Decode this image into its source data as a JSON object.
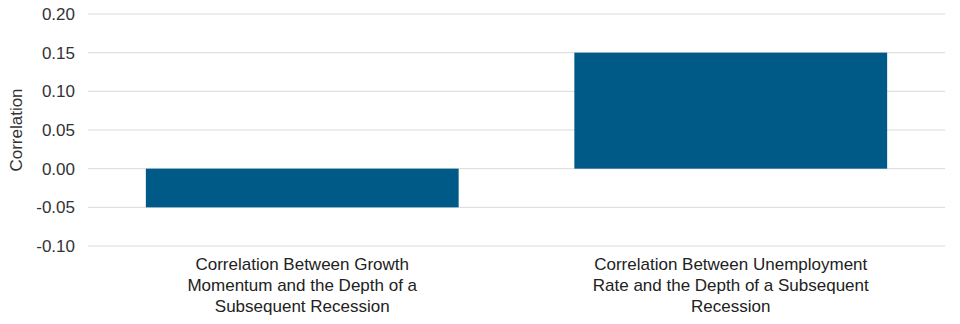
{
  "chart_data": {
    "type": "bar",
    "y_label": "Correlation",
    "categories": [
      "Correlation Between Growth Momentum and the Depth of a Subsequent Recession",
      "Correlation Between Unemployment Rate and the Depth of a Subsequent Recession"
    ],
    "values": [
      -0.05,
      0.15
    ],
    "color": "#005a87",
    "ylim": [
      -0.1,
      0.2
    ],
    "yticks": [
      {
        "value": -0.1,
        "label": "-0.10"
      },
      -0.05,
      {
        "value": 0,
        "label": "0.00"
      },
      0.05,
      {
        "value": 0.1,
        "label": "0.10"
      },
      0.15,
      {
        "value": 0.2,
        "label": "0.20"
      }
    ],
    "grid": true
  }
}
